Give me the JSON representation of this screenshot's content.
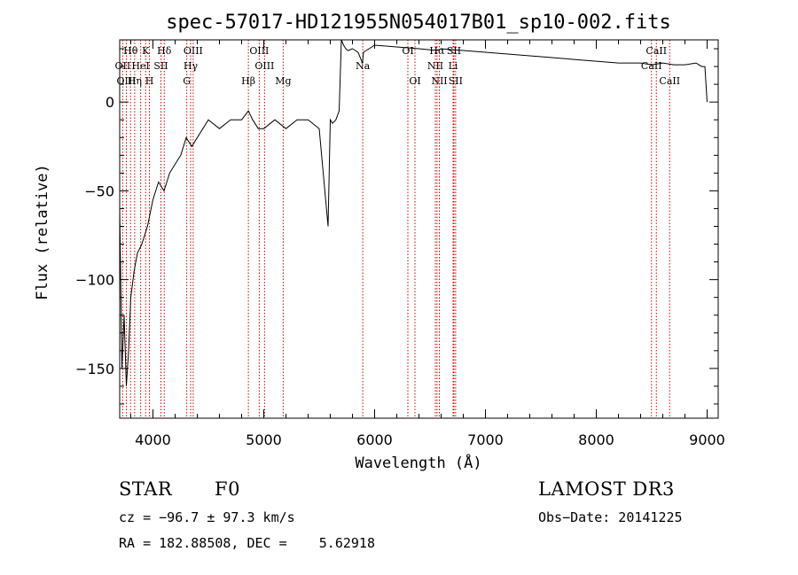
{
  "chart_data": {
    "type": "line",
    "title": "spec-57017-HD121955N054017B01_sp10-002.fits",
    "xlabel": "Wavelength (Å)",
    "ylabel": "Flux (relative)",
    "xlim": [
      3700,
      9100
    ],
    "ylim": [
      -178,
      35
    ],
    "xticks": [
      4000,
      5000,
      6000,
      7000,
      8000,
      9000
    ],
    "yticks": [
      0,
      -50,
      -100,
      -150
    ],
    "ytick_labels": [
      "0",
      "−50",
      "−100",
      "−150"
    ],
    "series": [
      {
        "name": "spectrum",
        "x": [
          3700,
          3720,
          3740,
          3760,
          3780,
          3800,
          3830,
          3860,
          3900,
          3950,
          4000,
          4050,
          4100,
          4150,
          4200,
          4250,
          4300,
          4350,
          4400,
          4500,
          4600,
          4700,
          4800,
          4861,
          4900,
          4950,
          5000,
          5100,
          5200,
          5300,
          5400,
          5500,
          5580,
          5600,
          5620,
          5650,
          5680,
          5700,
          5720,
          5740,
          5760,
          5800,
          5850,
          5890,
          5900,
          5950,
          6000,
          6200,
          6400,
          6563,
          6600,
          6800,
          7000,
          7200,
          7400,
          7600,
          7800,
          8000,
          8200,
          8400,
          8500,
          8600,
          8700,
          8800,
          8900,
          8950,
          8980,
          9000
        ],
        "y": [
          -60,
          -150,
          -120,
          -160,
          -140,
          -110,
          -95,
          -85,
          -80,
          -70,
          -55,
          -45,
          -50,
          -40,
          -35,
          -30,
          -20,
          -25,
          -20,
          -10,
          -15,
          -10,
          -10,
          -5,
          -10,
          -15,
          -15,
          -10,
          -15,
          -10,
          -10,
          -15,
          -70,
          -10,
          -12,
          -10,
          -5,
          35,
          32,
          30,
          29,
          30,
          28,
          22,
          28,
          30,
          32,
          31,
          30,
          29,
          30,
          29,
          28,
          27,
          26,
          25,
          24,
          23,
          22,
          22,
          21,
          22,
          21,
          21,
          22,
          20,
          20,
          0
        ]
      }
    ],
    "spectral_lines": [
      {
        "label": "Hθ",
        "wavelength": 3798,
        "row": 0
      },
      {
        "label": "K",
        "wavelength": 3934,
        "row": 0
      },
      {
        "label": "Hδ",
        "wavelength": 4102,
        "row": 0
      },
      {
        "label": "OIII",
        "wavelength": 4363,
        "row": 0
      },
      {
        "label": "OIII",
        "wavelength": 4959,
        "row": 0
      },
      {
        "label": "OI",
        "wavelength": 6300,
        "row": 0
      },
      {
        "label": "Hα",
        "wavelength": 6563,
        "row": 0
      },
      {
        "label": "SII",
        "wavelength": 6716,
        "row": 0
      },
      {
        "label": "CaII",
        "wavelength": 8542,
        "row": 0
      },
      {
        "label": "OII",
        "wavelength": 3727,
        "row": 1
      },
      {
        "label": "HeI",
        "wavelength": 3889,
        "row": 1
      },
      {
        "label": "SII",
        "wavelength": 4072,
        "row": 1
      },
      {
        "label": "Hγ",
        "wavelength": 4340,
        "row": 1
      },
      {
        "label": "OIII",
        "wavelength": 5007,
        "row": 1
      },
      {
        "label": "Na",
        "wavelength": 5893,
        "row": 1
      },
      {
        "label": "NII",
        "wavelength": 6548,
        "row": 1
      },
      {
        "label": "Li",
        "wavelength": 6708,
        "row": 1
      },
      {
        "label": "CaII",
        "wavelength": 8498,
        "row": 1
      },
      {
        "label": "OIII",
        "wavelength": 3760,
        "row": 2
      },
      {
        "label": "Hη",
        "wavelength": 3835,
        "row": 2
      },
      {
        "label": "H",
        "wavelength": 3968,
        "row": 2
      },
      {
        "label": "G",
        "wavelength": 4305,
        "row": 2
      },
      {
        "label": "Hβ",
        "wavelength": 4861,
        "row": 2
      },
      {
        "label": "Mg",
        "wavelength": 5175,
        "row": 2
      },
      {
        "label": "OI",
        "wavelength": 6364,
        "row": 2
      },
      {
        "label": "NII",
        "wavelength": 6584,
        "row": 2
      },
      {
        "label": "SII",
        "wavelength": 6731,
        "row": 2
      },
      {
        "label": "CaII",
        "wavelength": 8662,
        "row": 2
      }
    ]
  },
  "footer": {
    "object_class": "STAR",
    "subclass": "F0",
    "survey": "LAMOST DR3",
    "cz": "cz = −96.7 ± 97.3 km/s",
    "obs_date": "Obs−Date: 20141225",
    "coords": "RA = 182.88508, DEC =    5.62918"
  },
  "colors": {
    "spectrum": "#000000",
    "line_marker": "#cc0000",
    "axis": "#000000"
  }
}
